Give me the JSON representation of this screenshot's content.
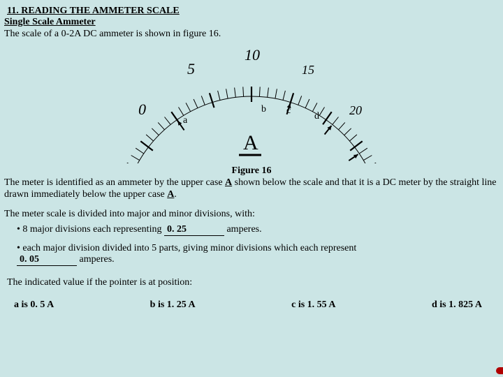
{
  "heading": "11. READING THE AMMETER SCALE",
  "subheading": "Single Scale Ammeter",
  "intro": "The scale of a 0-2A DC ammeter is shown in figure 16.",
  "figure": {
    "caption": "Figure 16",
    "symbol_letter": "A",
    "scale_labels": {
      "l0": "0",
      "l5": "5",
      "l10": "10",
      "l15": "15",
      "l20": "20"
    },
    "pointer_labels": {
      "a": "a",
      "b": "b",
      "c": "c",
      "d": "d"
    },
    "dc_symbol_desc": "straight line below A"
  },
  "desc_before_bold1": "The meter is identified as an ammeter by the upper case ",
  "bold_A1": "A",
  "desc_mid": " shown below the scale and that it is a DC meter by the straight line drawn immediately below the upper case ",
  "bold_A2": "A",
  "desc_end": ".",
  "divisions_intro": "The meter scale is divided into major and minor divisions, with:",
  "bullet1_before": "• 8 major divisions each representing ",
  "bullet1_fill": "0. 25",
  "bullet1_after": " amperes.",
  "bullet2_line1": "• each major division divided into 5 parts, giving minor divisions which each represent",
  "bullet2_fill": "0. 05",
  "bullet2_after": " amperes.",
  "indicated_intro": "The indicated value if the pointer is at position:",
  "answers": {
    "a": "a is 0. 5 A",
    "b": "b is 1. 25 A",
    "c": "c is 1. 55 A",
    "d": "d is 1. 825 A"
  },
  "colors": {
    "background": "#cbe5e5",
    "text": "#000000",
    "red": "#b00000"
  }
}
